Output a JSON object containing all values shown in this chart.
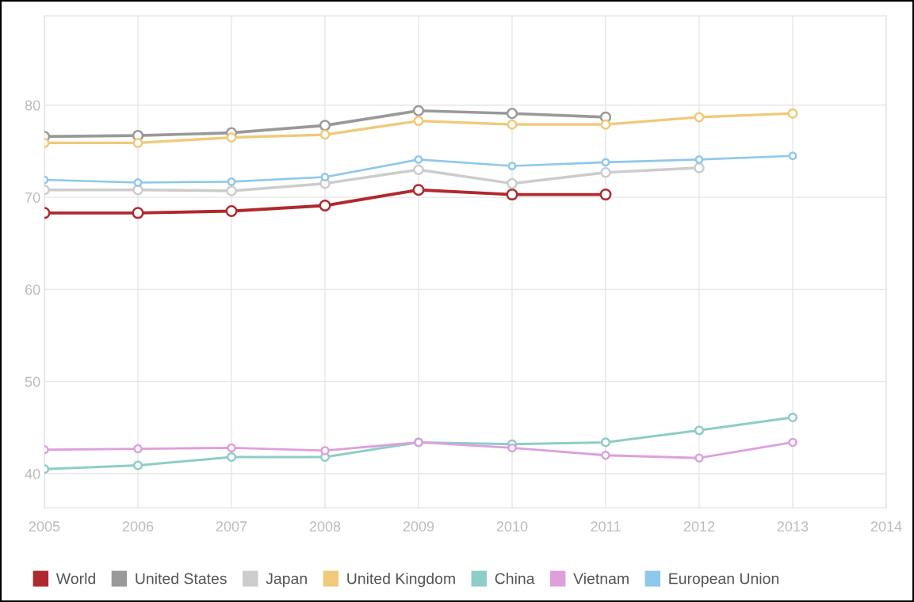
{
  "chart_data": {
    "type": "line",
    "x": [
      2005,
      2006,
      2007,
      2008,
      2009,
      2010,
      2011,
      2012,
      2013
    ],
    "series": [
      {
        "name": "World",
        "color": "#b0292e",
        "values": [
          68.3,
          68.3,
          68.5,
          69.1,
          70.8,
          70.3,
          70.3,
          null,
          null
        ]
      },
      {
        "name": "United States",
        "color": "#999999",
        "values": [
          76.6,
          76.7,
          77.0,
          77.8,
          79.4,
          79.1,
          78.7,
          null,
          null
        ]
      },
      {
        "name": "Japan",
        "color": "#cccccc",
        "values": [
          70.8,
          70.8,
          70.7,
          71.5,
          73.0,
          71.5,
          72.7,
          73.2,
          null
        ]
      },
      {
        "name": "United Kingdom",
        "color": "#f0c97a",
        "values": [
          75.9,
          75.9,
          76.5,
          76.8,
          78.3,
          77.9,
          77.9,
          78.7,
          79.1
        ]
      },
      {
        "name": "China",
        "color": "#8ecdc8",
        "values": [
          40.5,
          40.9,
          41.8,
          41.8,
          43.4,
          43.2,
          43.4,
          44.7,
          46.1
        ]
      },
      {
        "name": "Vietnam",
        "color": "#dda0dd",
        "values": [
          42.6,
          42.7,
          42.8,
          42.5,
          43.4,
          42.8,
          42.0,
          41.7,
          43.4
        ]
      },
      {
        "name": "European Union",
        "color": "#8ec8ec",
        "values": [
          71.9,
          71.6,
          71.7,
          72.2,
          74.1,
          73.4,
          73.8,
          74.1,
          74.5
        ]
      }
    ],
    "xlim": [
      2005,
      2014
    ],
    "xticks": [
      2005,
      2006,
      2007,
      2008,
      2009,
      2010,
      2011,
      2012,
      2013,
      2014
    ],
    "ylim": [
      36.3,
      89.7
    ],
    "yticks": [
      40,
      50,
      60,
      70,
      80
    ],
    "grid": true,
    "legend": "bottom left",
    "marker": "circle",
    "line_style": "solid"
  }
}
